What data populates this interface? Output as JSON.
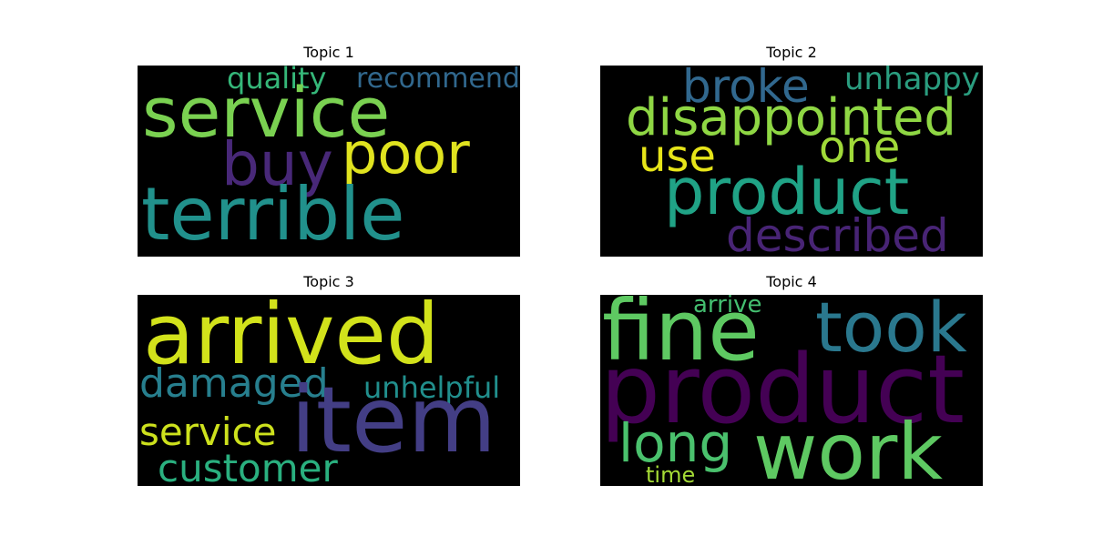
{
  "figure": {
    "background": "#ffffff",
    "cloud_background": "#000000"
  },
  "topics": [
    {
      "title": "Topic 1",
      "words": [
        {
          "text": "quality",
          "color": "#35b779"
        },
        {
          "text": "recommend",
          "color": "#31688e"
        },
        {
          "text": "service",
          "color": "#7ad151"
        },
        {
          "text": "poor",
          "color": "#e0e31f"
        },
        {
          "text": "buy",
          "color": "#482878"
        },
        {
          "text": "terrible",
          "color": "#21918c"
        }
      ]
    },
    {
      "title": "Topic 2",
      "words": [
        {
          "text": "broke",
          "color": "#31688e"
        },
        {
          "text": "unhappy",
          "color": "#2a9d7f"
        },
        {
          "text": "disappointed",
          "color": "#8fd744"
        },
        {
          "text": "use",
          "color": "#e6e419"
        },
        {
          "text": "one",
          "color": "#a0da39"
        },
        {
          "text": "product",
          "color": "#20a386"
        },
        {
          "text": "described",
          "color": "#482475"
        }
      ]
    },
    {
      "title": "Topic 3",
      "words": [
        {
          "text": "arrived",
          "color": "#d2e21b"
        },
        {
          "text": "damaged",
          "color": "#277f8e"
        },
        {
          "text": "unhelpful",
          "color": "#218f8d"
        },
        {
          "text": "item",
          "color": "#433e85"
        },
        {
          "text": "service",
          "color": "#cde11d"
        },
        {
          "text": "customer",
          "color": "#2ab07f"
        }
      ]
    },
    {
      "title": "Topic 4",
      "words": [
        {
          "text": "fine",
          "color": "#5ec962"
        },
        {
          "text": "arrive",
          "color": "#44bf70"
        },
        {
          "text": "took",
          "color": "#2a788e"
        },
        {
          "text": "product",
          "color": "#440154"
        },
        {
          "text": "long",
          "color": "#4ac16d"
        },
        {
          "text": "work",
          "color": "#5ec962"
        },
        {
          "text": "time",
          "color": "#a5db36"
        }
      ]
    }
  ]
}
